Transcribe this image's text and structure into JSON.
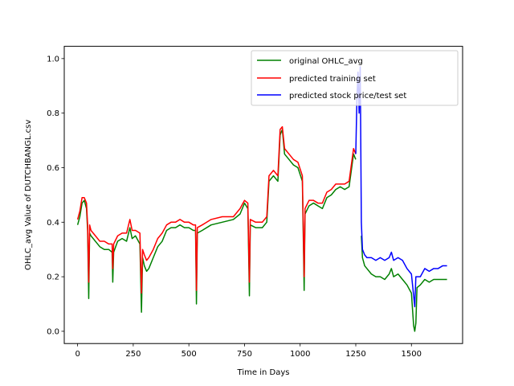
{
  "chart_data": {
    "type": "line",
    "xlabel": "Time in Days",
    "ylabel": "OHLC_avg Value of DUTCHBANGL.csv",
    "xlim": [
      -60,
      1730
    ],
    "ylim": [
      -0.045,
      1.045
    ],
    "xticks": [
      0,
      250,
      500,
      750,
      1000,
      1250,
      1500
    ],
    "yticks": [
      0.0,
      0.2,
      0.4,
      0.6,
      0.8,
      1.0
    ],
    "xtick_labels": [
      "0",
      "250",
      "500",
      "750",
      "1000",
      "1250",
      "1500"
    ],
    "ytick_labels": [
      "0.0",
      "0.2",
      "0.4",
      "0.6",
      "0.8",
      "1.0"
    ],
    "grid": false,
    "legend_position": "top-right",
    "series": [
      {
        "name": "original OHLC_avg",
        "color": "#008000",
        "points": [
          [
            0,
            0.39
          ],
          [
            10,
            0.42
          ],
          [
            20,
            0.47
          ],
          [
            30,
            0.48
          ],
          [
            40,
            0.45
          ],
          [
            45,
            0.37
          ],
          [
            50,
            0.12
          ],
          [
            54,
            0.36
          ],
          [
            60,
            0.35
          ],
          [
            80,
            0.33
          ],
          [
            100,
            0.31
          ],
          [
            120,
            0.3
          ],
          [
            140,
            0.3
          ],
          [
            155,
            0.29
          ],
          [
            158,
            0.18
          ],
          [
            162,
            0.29
          ],
          [
            180,
            0.33
          ],
          [
            200,
            0.34
          ],
          [
            220,
            0.33
          ],
          [
            235,
            0.38
          ],
          [
            245,
            0.34
          ],
          [
            260,
            0.35
          ],
          [
            280,
            0.32
          ],
          [
            287,
            0.07
          ],
          [
            292,
            0.27
          ],
          [
            300,
            0.24
          ],
          [
            310,
            0.22
          ],
          [
            320,
            0.23
          ],
          [
            340,
            0.27
          ],
          [
            360,
            0.31
          ],
          [
            380,
            0.33
          ],
          [
            400,
            0.37
          ],
          [
            420,
            0.38
          ],
          [
            440,
            0.38
          ],
          [
            460,
            0.39
          ],
          [
            480,
            0.38
          ],
          [
            500,
            0.38
          ],
          [
            520,
            0.37
          ],
          [
            530,
            0.37
          ],
          [
            534,
            0.1
          ],
          [
            538,
            0.36
          ],
          [
            560,
            0.37
          ],
          [
            600,
            0.39
          ],
          [
            650,
            0.4
          ],
          [
            700,
            0.41
          ],
          [
            730,
            0.43
          ],
          [
            750,
            0.47
          ],
          [
            765,
            0.45
          ],
          [
            772,
            0.13
          ],
          [
            776,
            0.39
          ],
          [
            800,
            0.38
          ],
          [
            830,
            0.38
          ],
          [
            850,
            0.4
          ],
          [
            860,
            0.55
          ],
          [
            880,
            0.57
          ],
          [
            900,
            0.55
          ],
          [
            910,
            0.72
          ],
          [
            920,
            0.74
          ],
          [
            930,
            0.65
          ],
          [
            950,
            0.63
          ],
          [
            970,
            0.61
          ],
          [
            990,
            0.6
          ],
          [
            1010,
            0.55
          ],
          [
            1018,
            0.15
          ],
          [
            1022,
            0.43
          ],
          [
            1040,
            0.46
          ],
          [
            1060,
            0.47
          ],
          [
            1080,
            0.46
          ],
          [
            1100,
            0.45
          ],
          [
            1120,
            0.49
          ],
          [
            1140,
            0.5
          ],
          [
            1160,
            0.52
          ],
          [
            1180,
            0.53
          ],
          [
            1200,
            0.52
          ],
          [
            1220,
            0.53
          ],
          [
            1240,
            0.65
          ],
          [
            1250,
            0.63
          ]
        ]
      },
      {
        "name": "predicted training set",
        "color": "#ff0000",
        "points": [
          [
            0,
            0.41
          ],
          [
            10,
            0.44
          ],
          [
            20,
            0.49
          ],
          [
            30,
            0.49
          ],
          [
            40,
            0.47
          ],
          [
            45,
            0.39
          ],
          [
            50,
            0.18
          ],
          [
            54,
            0.39
          ],
          [
            60,
            0.37
          ],
          [
            80,
            0.35
          ],
          [
            100,
            0.33
          ],
          [
            120,
            0.33
          ],
          [
            140,
            0.32
          ],
          [
            155,
            0.32
          ],
          [
            158,
            0.23
          ],
          [
            162,
            0.32
          ],
          [
            180,
            0.35
          ],
          [
            200,
            0.36
          ],
          [
            220,
            0.36
          ],
          [
            235,
            0.41
          ],
          [
            245,
            0.37
          ],
          [
            260,
            0.37
          ],
          [
            280,
            0.36
          ],
          [
            287,
            0.14
          ],
          [
            292,
            0.3
          ],
          [
            300,
            0.28
          ],
          [
            310,
            0.26
          ],
          [
            320,
            0.27
          ],
          [
            340,
            0.3
          ],
          [
            360,
            0.34
          ],
          [
            380,
            0.36
          ],
          [
            400,
            0.39
          ],
          [
            420,
            0.4
          ],
          [
            440,
            0.4
          ],
          [
            460,
            0.41
          ],
          [
            480,
            0.4
          ],
          [
            500,
            0.4
          ],
          [
            520,
            0.39
          ],
          [
            530,
            0.39
          ],
          [
            534,
            0.15
          ],
          [
            538,
            0.38
          ],
          [
            560,
            0.39
          ],
          [
            600,
            0.41
          ],
          [
            650,
            0.42
          ],
          [
            700,
            0.42
          ],
          [
            730,
            0.45
          ],
          [
            750,
            0.48
          ],
          [
            765,
            0.47
          ],
          [
            772,
            0.18
          ],
          [
            776,
            0.41
          ],
          [
            800,
            0.4
          ],
          [
            830,
            0.4
          ],
          [
            850,
            0.42
          ],
          [
            860,
            0.57
          ],
          [
            880,
            0.59
          ],
          [
            900,
            0.57
          ],
          [
            910,
            0.74
          ],
          [
            920,
            0.75
          ],
          [
            930,
            0.67
          ],
          [
            950,
            0.65
          ],
          [
            970,
            0.63
          ],
          [
            990,
            0.62
          ],
          [
            1010,
            0.57
          ],
          [
            1018,
            0.2
          ],
          [
            1022,
            0.45
          ],
          [
            1040,
            0.48
          ],
          [
            1060,
            0.48
          ],
          [
            1080,
            0.47
          ],
          [
            1100,
            0.47
          ],
          [
            1120,
            0.51
          ],
          [
            1140,
            0.52
          ],
          [
            1160,
            0.54
          ],
          [
            1180,
            0.54
          ],
          [
            1200,
            0.54
          ],
          [
            1220,
            0.55
          ],
          [
            1240,
            0.67
          ],
          [
            1250,
            0.65
          ]
        ]
      },
      {
        "name": "predicted stock price/test set",
        "color": "#0000ff",
        "points": [
          [
            1250,
            0.65
          ],
          [
            1255,
            0.85
          ],
          [
            1260,
            0.95
          ],
          [
            1265,
            0.8
          ],
          [
            1270,
            0.97
          ],
          [
            1275,
            0.4
          ],
          [
            1280,
            0.3
          ],
          [
            1290,
            0.28
          ],
          [
            1300,
            0.27
          ],
          [
            1320,
            0.27
          ],
          [
            1340,
            0.26
          ],
          [
            1360,
            0.27
          ],
          [
            1380,
            0.26
          ],
          [
            1400,
            0.27
          ],
          [
            1410,
            0.29
          ],
          [
            1420,
            0.26
          ],
          [
            1440,
            0.27
          ],
          [
            1460,
            0.26
          ],
          [
            1480,
            0.23
          ],
          [
            1500,
            0.21
          ],
          [
            1510,
            0.13
          ],
          [
            1515,
            0.09
          ],
          [
            1520,
            0.2
          ],
          [
            1540,
            0.2
          ],
          [
            1560,
            0.23
          ],
          [
            1580,
            0.22
          ],
          [
            1600,
            0.23
          ],
          [
            1620,
            0.23
          ],
          [
            1640,
            0.24
          ],
          [
            1660,
            0.24
          ]
        ]
      },
      {
        "name": "",
        "color": "#008000",
        "points": [
          [
            1275,
            0.35
          ],
          [
            1280,
            0.27
          ],
          [
            1290,
            0.24
          ],
          [
            1300,
            0.23
          ],
          [
            1320,
            0.21
          ],
          [
            1340,
            0.2
          ],
          [
            1360,
            0.2
          ],
          [
            1380,
            0.19
          ],
          [
            1400,
            0.21
          ],
          [
            1410,
            0.23
          ],
          [
            1420,
            0.2
          ],
          [
            1440,
            0.21
          ],
          [
            1460,
            0.19
          ],
          [
            1480,
            0.17
          ],
          [
            1500,
            0.14
          ],
          [
            1510,
            0.02
          ],
          [
            1515,
            0.0
          ],
          [
            1520,
            0.03
          ],
          [
            1525,
            0.16
          ],
          [
            1540,
            0.17
          ],
          [
            1560,
            0.19
          ],
          [
            1580,
            0.18
          ],
          [
            1600,
            0.19
          ],
          [
            1620,
            0.19
          ],
          [
            1640,
            0.19
          ],
          [
            1660,
            0.19
          ]
        ]
      }
    ]
  }
}
